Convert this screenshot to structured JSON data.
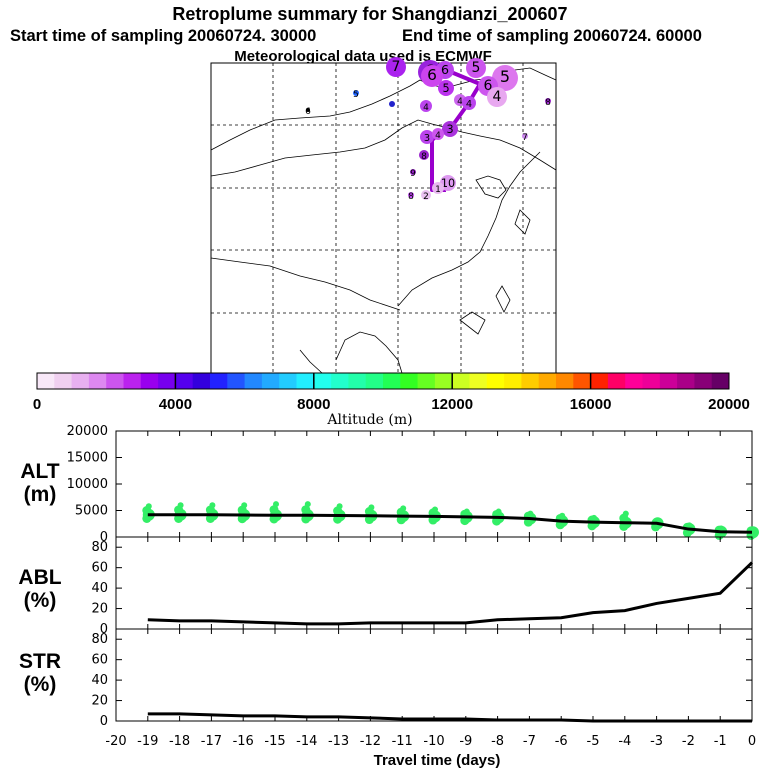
{
  "header": {
    "title": "Retroplume summary for Shangdianzi_200607",
    "start_time": "Start time of sampling 20060724. 30000",
    "end_time": "End time of sampling 20060724. 60000",
    "met_data": "Meteorological data used is ECMWF"
  },
  "colors": {
    "plume_line": "#9900cc",
    "alt_markers": "#33ee66",
    "colorbar": [
      "#f8e8f8",
      "#f0d0f0",
      "#e8b0f0",
      "#dd88f0",
      "#cc55ee",
      "#bb22ee",
      "#9900ee",
      "#7700ee",
      "#5500ee",
      "#3300dd",
      "#2222ff",
      "#2255ff",
      "#2288ff",
      "#22aaff",
      "#22ccff",
      "#22eeff",
      "#22ffee",
      "#22ffcc",
      "#22ffaa",
      "#22ff88",
      "#22ff55",
      "#33ff22",
      "#66ff22",
      "#99ff22",
      "#ccff22",
      "#eeff22",
      "#ffff00",
      "#ffee00",
      "#ffcc00",
      "#ffaa00",
      "#ff8800",
      "#ff5500",
      "#ff2200",
      "#ff0066",
      "#ff0099",
      "#ee0099",
      "#cc0099",
      "#aa0088",
      "#880077",
      "#660066"
    ]
  },
  "colorbar": {
    "tick_labels": [
      "0",
      "4000",
      "8000",
      "12000",
      "16000",
      "20000"
    ],
    "label": "Altitude (m)"
  },
  "map": {
    "markers": [
      {
        "label": "7",
        "color": "#aa22ee",
        "size": 10
      },
      {
        "label": "6",
        "color": "#9922dd",
        "size": 12
      },
      {
        "label": "6",
        "color": "#bb44ee",
        "size": 9
      },
      {
        "label": "5",
        "color": "#dd77ee",
        "size": 13
      },
      {
        "label": "5",
        "color": "#cc55ee",
        "size": 10
      },
      {
        "label": "5",
        "color": "#2266ff",
        "size": 3
      },
      {
        "label": "6",
        "color": "#000000",
        "size": 2
      },
      {
        "label": "6",
        "color": "#cc55ee",
        "size": 10
      },
      {
        "label": "5",
        "color": "#bb33ee",
        "size": 8
      },
      {
        "label": "6",
        "color": "#cc44ee",
        "size": 11
      },
      {
        "label": "4",
        "color": "#e8a8f0",
        "size": 10
      },
      {
        "label": "4",
        "color": "#bb44ee",
        "size": 6
      },
      {
        "label": "4",
        "color": "#cc66ee",
        "size": 6
      },
      {
        "label": "4",
        "color": "#bb44ee",
        "size": 7
      },
      {
        "label": "7",
        "color": "#cc88ee",
        "size": 3
      },
      {
        "label": "8",
        "color": "#9922cc",
        "size": 3
      },
      {
        "label": "3",
        "color": "#aa33dd",
        "size": 8
      },
      {
        "label": "3",
        "color": "#bb44ee",
        "size": 7
      },
      {
        "label": "4",
        "color": "#cc55ee",
        "size": 6
      },
      {
        "label": "8",
        "color": "#9922cc",
        "size": 5
      },
      {
        "label": "9",
        "color": "#9922cc",
        "size": 3
      },
      {
        "label": "10",
        "color": "#dd99f0",
        "size": 8
      },
      {
        "label": "1",
        "color": "#e8b8f0",
        "size": 6
      },
      {
        "label": "2",
        "color": "#e8c0f0",
        "size": 5
      },
      {
        "label": "8",
        "color": "#bb44ee",
        "size": 3
      },
      {
        "label": "",
        "color": "#2222cc",
        "size": 3
      }
    ]
  },
  "panels": {
    "alt": {
      "title_line1": "ALT",
      "title_line2": "(m)",
      "yticks": [
        "20000",
        "15000",
        "10000",
        "5000",
        "0"
      ]
    },
    "abl": {
      "title_line1": "ABL",
      "title_line2": "(%)",
      "yticks": [
        "80",
        "60",
        "40",
        "20",
        "0"
      ]
    },
    "str": {
      "title_line1": "STR",
      "title_line2": "(%)",
      "yticks": [
        "80",
        "60",
        "40",
        "20",
        "0"
      ]
    }
  },
  "chart_data": [
    {
      "type": "line",
      "title": "ALT (m)",
      "xlabel": "Travel time (days)",
      "ylabel": "ALT (m)",
      "xlim": [
        -20,
        0
      ],
      "ylim": [
        0,
        20000
      ],
      "x": [
        -19,
        -18,
        -17,
        -16,
        -15,
        -14,
        -13,
        -12,
        -11,
        -10,
        -9,
        -8,
        -7,
        -6,
        -5,
        -4,
        -3,
        -2,
        -1,
        0
      ],
      "values": [
        4200,
        4200,
        4200,
        4150,
        4100,
        4100,
        4050,
        4000,
        3950,
        3900,
        3800,
        3700,
        3500,
        3000,
        2800,
        2700,
        2600,
        1500,
        1000,
        900
      ],
      "scatter_upper": [
        5800,
        6000,
        6000,
        6000,
        6200,
        6200,
        5800,
        5600,
        5400,
        5200,
        4800,
        4800,
        4400,
        4000,
        3600,
        4400,
        2400,
        2200,
        1600,
        1400
      ]
    },
    {
      "type": "line",
      "title": "ABL (%)",
      "ylabel": "ABL (%)",
      "xlim": [
        -20,
        0
      ],
      "ylim": [
        0,
        90
      ],
      "x": [
        -19,
        -18,
        -17,
        -16,
        -15,
        -14,
        -13,
        -12,
        -11,
        -10,
        -9,
        -8,
        -7,
        -6,
        -5,
        -4,
        -3,
        -2,
        -1,
        0
      ],
      "values": [
        9,
        8,
        8,
        7,
        6,
        5,
        5,
        6,
        6,
        6,
        6,
        9,
        10,
        11,
        16,
        18,
        25,
        30,
        35,
        65
      ]
    },
    {
      "type": "line",
      "title": "STR (%)",
      "ylabel": "STR (%)",
      "xlim": [
        -20,
        0
      ],
      "ylim": [
        0,
        90
      ],
      "x": [
        -19,
        -18,
        -17,
        -16,
        -15,
        -14,
        -13,
        -12,
        -11,
        -10,
        -9,
        -8,
        -7,
        -6,
        -5,
        -4,
        -3,
        -2,
        -1,
        0
      ],
      "values": [
        7,
        7,
        6,
        5,
        5,
        4,
        4,
        3,
        2,
        2,
        2,
        1,
        1,
        1,
        0,
        0,
        0,
        0,
        0,
        0
      ]
    }
  ],
  "xaxis": {
    "ticks": [
      "-20",
      "-19",
      "-18",
      "-17",
      "-16",
      "-15",
      "-14",
      "-13",
      "-12",
      "-11",
      "-10",
      "-9",
      "-8",
      "-7",
      "-6",
      "-5",
      "-4",
      "-3",
      "-2",
      "-1",
      "0"
    ],
    "label": "Travel time (days)"
  }
}
